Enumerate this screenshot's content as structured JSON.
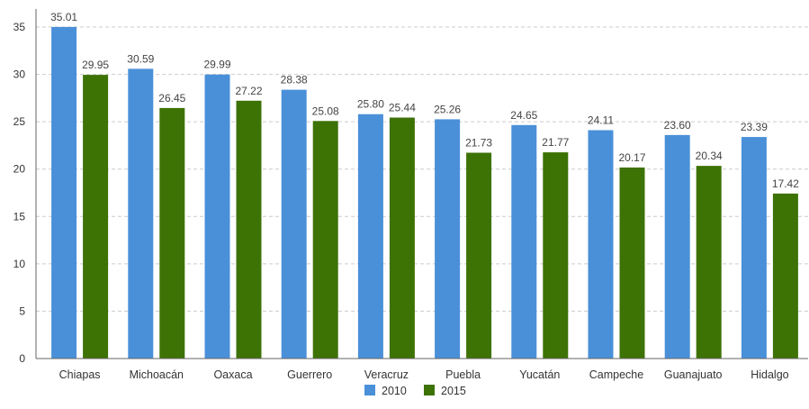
{
  "chart_data": {
    "type": "bar",
    "categories": [
      "Chiapas",
      "Michoacán",
      "Oaxaca",
      "Guerrero",
      "Veracruz",
      "Puebla",
      "Yucatán",
      "Campeche",
      "Guanajuato",
      "Hidalgo"
    ],
    "series": [
      {
        "name": "2010",
        "color": "#4a90d9",
        "values": [
          35.01,
          30.59,
          29.99,
          28.38,
          25.8,
          25.26,
          24.65,
          24.11,
          23.6,
          23.39
        ],
        "labels": [
          "35.01",
          "30.59",
          "29.99",
          "28.38",
          "25.80",
          "25.26",
          "24.65",
          "24.11",
          "23.60",
          "23.39"
        ]
      },
      {
        "name": "2015",
        "color": "#3d7205",
        "values": [
          29.95,
          26.45,
          27.22,
          25.08,
          25.44,
          21.73,
          21.77,
          20.17,
          20.34,
          17.42
        ],
        "labels": [
          "29.95",
          "26.45",
          "27.22",
          "25.08",
          "25.44",
          "21.73",
          "21.77",
          "20.17",
          "20.34",
          "17.42"
        ]
      }
    ],
    "yticks": [
      "0",
      "5",
      "10",
      "15",
      "20",
      "25",
      "30",
      "35"
    ],
    "ylim": [
      0,
      35
    ],
    "grid": true,
    "legend_position": "bottom-center"
  }
}
